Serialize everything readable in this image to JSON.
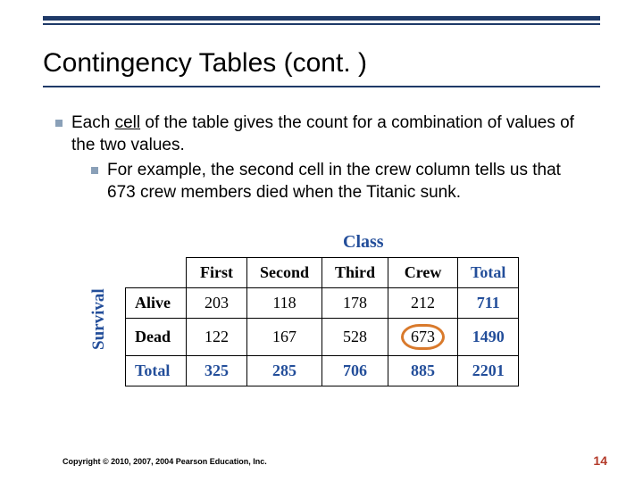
{
  "slide": {
    "title": "Contingency Tables (cont. )",
    "rule_color": "#1f3a68",
    "accent_color": "#234e9a"
  },
  "bullet": {
    "main_pre": "Each ",
    "cell_word": "cell",
    "main_post": " of the table gives the count for a combination of values of the two values.",
    "sub": "For example, the second cell in the crew column tells us that 673 crew members died when the Titanic sunk."
  },
  "table": {
    "top_label": "Class",
    "side_label": "Survival",
    "columns": [
      "First",
      "Second",
      "Third",
      "Crew",
      "Total"
    ],
    "rows": [
      {
        "label": "Alive",
        "values": [
          "203",
          "118",
          "178",
          "212",
          "711"
        ]
      },
      {
        "label": "Dead",
        "values": [
          "122",
          "167",
          "528",
          "673",
          "1490"
        ]
      },
      {
        "label": "Total",
        "values": [
          "325",
          "285",
          "706",
          "885",
          "2201"
        ]
      }
    ],
    "highlight": {
      "row": 1,
      "col": 3
    },
    "highlight_color": "#d97a2c"
  },
  "footer": {
    "copyright": "Copyright © 2010, 2007, 2004 Pearson Education, Inc.",
    "page": "14"
  }
}
